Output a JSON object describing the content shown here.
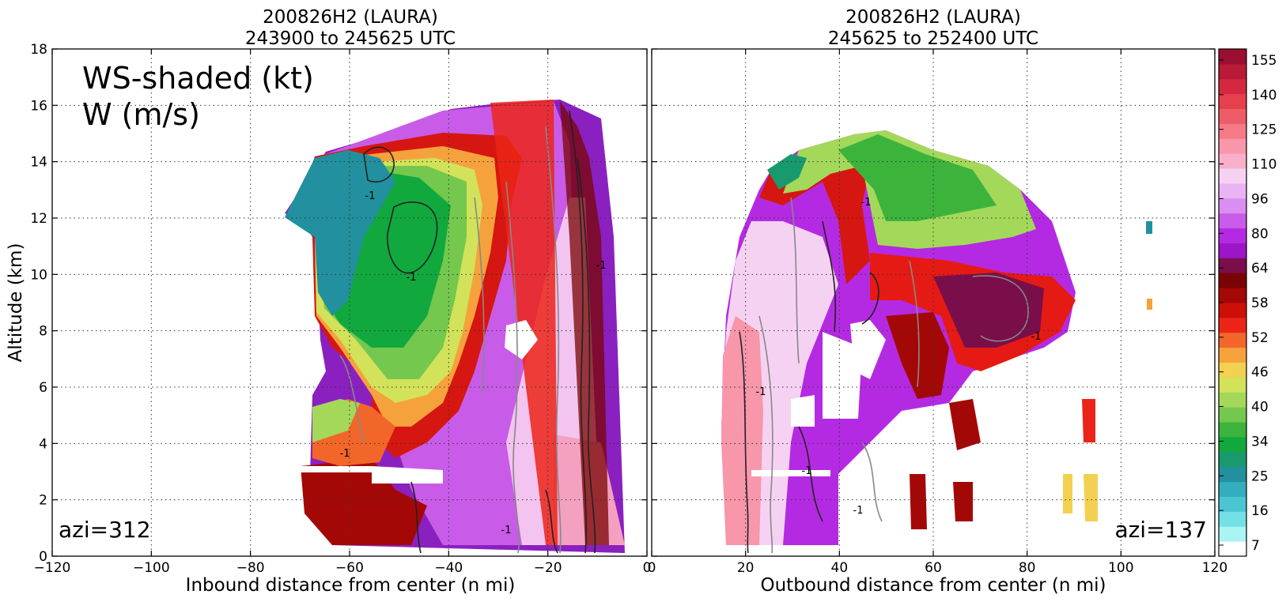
{
  "chart_data": {
    "type": "heatmap",
    "units_label": "kt",
    "contour_label": "-1",
    "left_panel": {
      "title_line1": "200826H2 (LAURA)",
      "title_line2": "243900 to 245625 UTC",
      "xlabel": "Inbound distance from center (n mi)",
      "ylabel": "Altitude (km)",
      "xlim": [
        -120,
        0
      ],
      "ylim": [
        0,
        18
      ],
      "x_ticks": [
        "−120",
        "−100",
        "−80",
        "−60",
        "−40",
        "−20",
        "0"
      ],
      "x_tick_values": [
        -120,
        -100,
        -80,
        -60,
        -40,
        -20,
        0
      ],
      "y_ticks": [
        "0",
        "2",
        "4",
        "6",
        "8",
        "10",
        "12",
        "14",
        "16",
        "18"
      ],
      "y_tick_values": [
        0,
        2,
        4,
        6,
        8,
        10,
        12,
        14,
        16,
        18
      ],
      "annotation_line1": "WS-shaded (kt)",
      "annotation_line2": "W (m/s)",
      "azimuth": "azi=312",
      "grid": true
    },
    "right_panel": {
      "title_line1": "200826H2 (LAURA)",
      "title_line2": "245625 to 252400 UTC",
      "xlabel": "Outbound distance from center (n mi)",
      "xlim": [
        0,
        120
      ],
      "ylim": [
        0,
        18
      ],
      "x_ticks": [
        "0",
        "20",
        "40",
        "60",
        "80",
        "100",
        "120"
      ],
      "x_tick_values": [
        0,
        20,
        40,
        60,
        80,
        100,
        120
      ],
      "azimuth": "azi=137",
      "grid": true
    },
    "colorbar": {
      "tick_labels": [
        "7",
        "16",
        "25",
        "34",
        "40",
        "46",
        "52",
        "58",
        "64",
        "80",
        "96",
        "110",
        "125",
        "140",
        "155"
      ],
      "colors": [
        "#ffffff",
        "#aaf4f4",
        "#72e0e6",
        "#4ac6d2",
        "#33aebe",
        "#22909e",
        "#199a6e",
        "#11a83e",
        "#3cb43c",
        "#74c84e",
        "#a4d85a",
        "#d2e25a",
        "#f2d052",
        "#f6a23c",
        "#f2662a",
        "#ec2418",
        "#cc1008",
        "#a40806",
        "#7a0402",
        "#7a0e4a",
        "#9c16c8",
        "#b42ae2",
        "#c85ce8",
        "#da8ef0",
        "#e8b4f4",
        "#f6d2f2",
        "#f8b0c8",
        "#f896aa",
        "#f47a88",
        "#ee5c68",
        "#e6404c",
        "#d42840",
        "#b81a38",
        "#9a0e32"
      ]
    }
  }
}
